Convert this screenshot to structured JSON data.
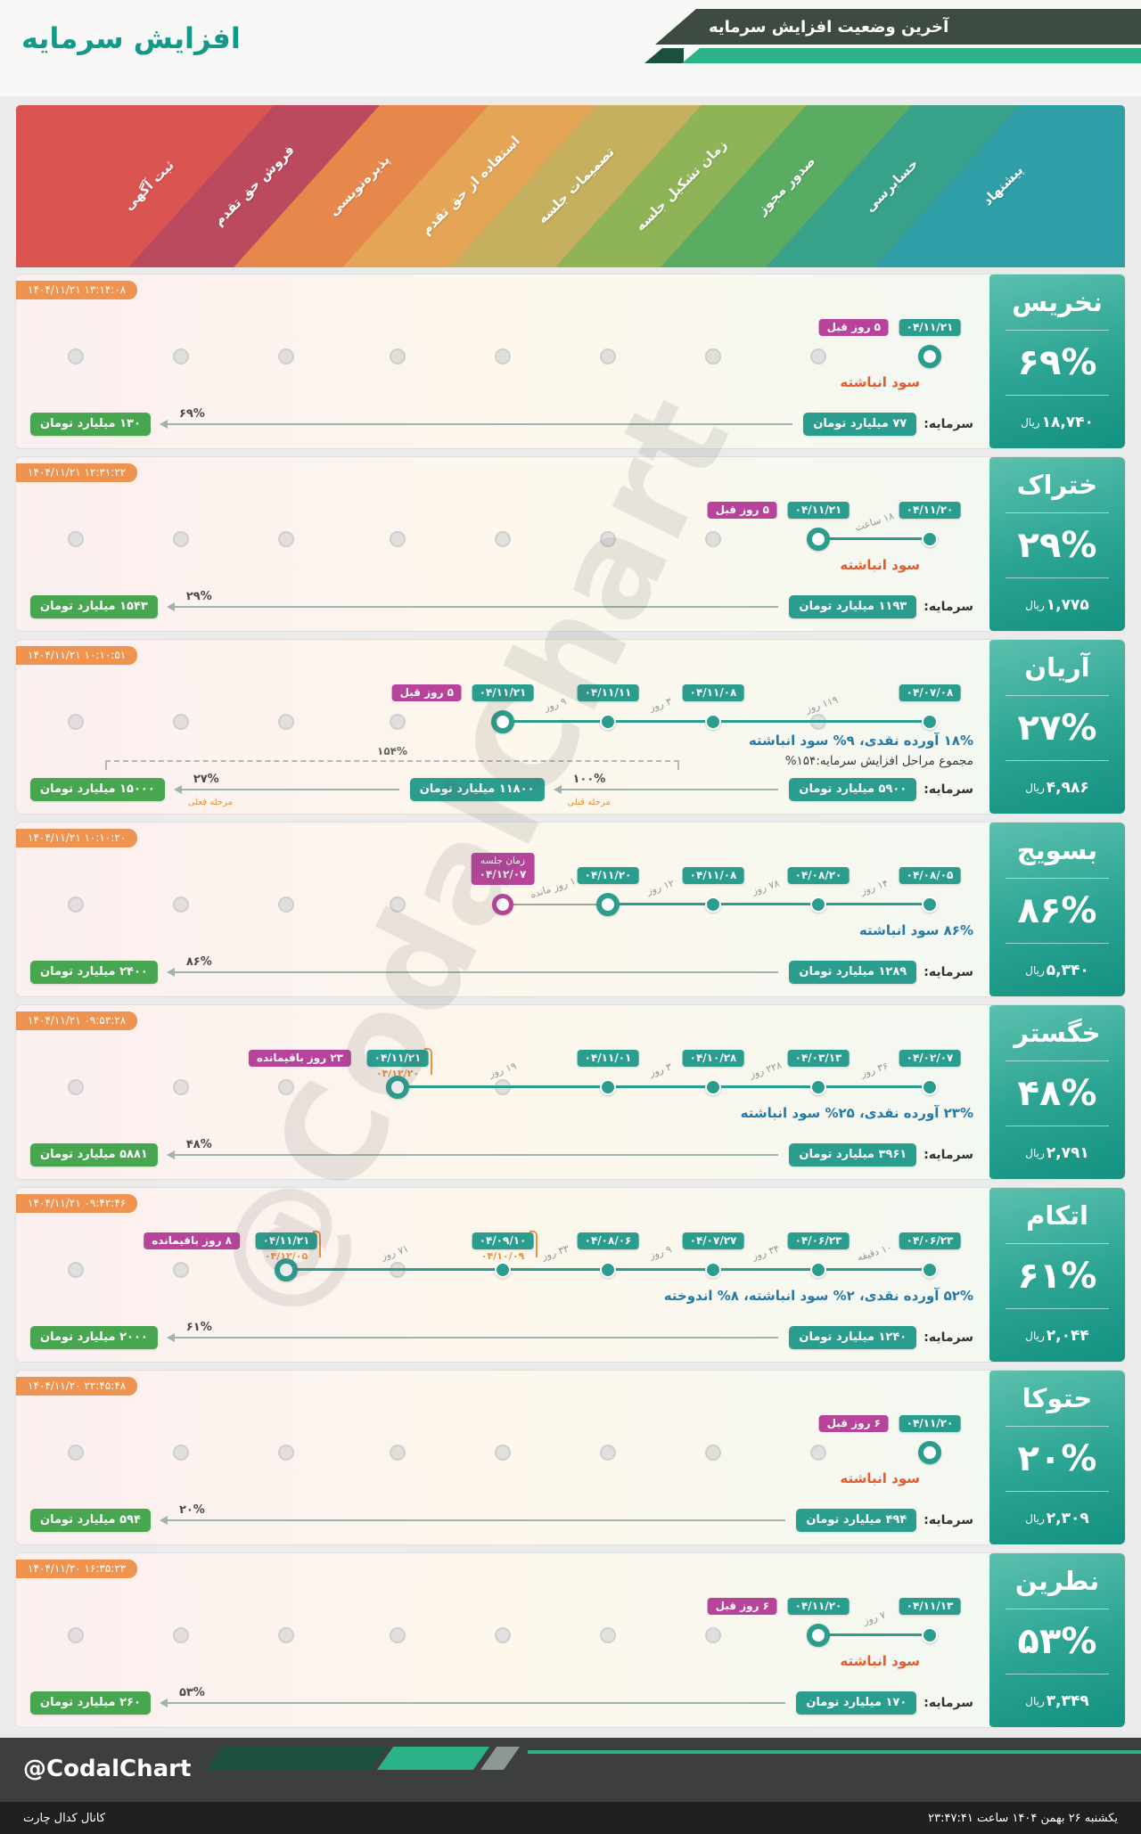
{
  "header": {
    "title": "افزایش سرمایه",
    "banner": "آخرین وضعیت افزایش سرمایه"
  },
  "watermark": "@CodalChart",
  "colors": {
    "teal": "#2a9d8f",
    "magenta": "#b8439a",
    "timestamp_orange": "#ef9350",
    "green_badge": "#47a64f",
    "panel_top": "#5cc0ae",
    "panel_bottom": "#149180"
  },
  "stages": [
    {
      "label": "پیشنهاد",
      "color": "#2f9ea6"
    },
    {
      "label": "حسابرسی",
      "color": "#37a289"
    },
    {
      "label": "صدور مجوز",
      "color": "#5aac63"
    },
    {
      "label": "زمان تشکیل جلسه",
      "color": "#8fb457"
    },
    {
      "label": "تصمیمات جلسه",
      "color": "#c4b05e"
    },
    {
      "label": "استفاده از حق تقدم",
      "color": "#e5a557"
    },
    {
      "label": "پذیره‌نویسی",
      "color": "#e6874b"
    },
    {
      "label": "فروش حق تقدم",
      "color": "#bb4a5e"
    },
    {
      "label": "ثبت آگهی",
      "color": "#da5452"
    }
  ],
  "rows": [
    {
      "symbol": "نخریس",
      "timestamp": "۱۴۰۴/۱۱/۲۱ ۱۳:۱۴:۰۸",
      "percent": "۶۹%",
      "price": "۱۸,۷۴۰",
      "price_unit": "ریال",
      "dots": [
        {
          "stage": 0,
          "date": "۰۴/۱۱/۲۱",
          "active": true,
          "ago": "۵ روز قبل"
        }
      ],
      "notes": [
        {
          "text": "سود انباشته",
          "style": "orange"
        }
      ],
      "capital": {
        "label": "سرمایه:",
        "items": [
          {
            "type": "badge",
            "color": "teal",
            "text": "۷۷ میلیارد تومان"
          },
          {
            "type": "arrow",
            "pct": "۶۹%"
          },
          {
            "type": "badge",
            "color": "green",
            "text": "۱۳۰ میلیارد تومان"
          }
        ]
      }
    },
    {
      "symbol": "ختراک",
      "timestamp": "۱۴۰۴/۱۱/۲۱ ۱۲:۳۱:۲۲",
      "percent": "۲۹%",
      "price": "۱,۷۷۵",
      "price_unit": "ریال",
      "dots": [
        {
          "stage": 0,
          "date": "۰۴/۱۱/۲۰",
          "dur": "۱۸ ساعت"
        },
        {
          "stage": 1,
          "date": "۰۴/۱۱/۲۱",
          "active": true,
          "ago": "۵ روز قبل"
        }
      ],
      "notes": [
        {
          "text": "سود انباشته",
          "style": "orange"
        }
      ],
      "capital": {
        "label": "سرمایه:",
        "items": [
          {
            "type": "badge",
            "color": "teal",
            "text": "۱۱۹۳ میلیارد تومان"
          },
          {
            "type": "arrow",
            "pct": "۲۹%"
          },
          {
            "type": "badge",
            "color": "green",
            "text": "۱۵۴۳ میلیارد تومان"
          }
        ]
      }
    },
    {
      "symbol": "آریان",
      "timestamp": "۱۴۰۴/۱۱/۲۱ ۱۰:۱۰:۵۱",
      "percent": "۲۷%",
      "price": "۴,۹۸۶",
      "price_unit": "ریال",
      "dots": [
        {
          "stage": 0,
          "date": "۰۴/۰۷/۰۸",
          "dur": "۱۱۹ روز"
        },
        {
          "stage": 2,
          "date": "۰۴/۱۱/۰۸",
          "dur": "۳ روز"
        },
        {
          "stage": 3,
          "date": "۰۴/۱۱/۱۱",
          "dur": "۹ روز"
        },
        {
          "stage": 4,
          "date": "۰۴/۱۱/۲۱",
          "active": true,
          "ago": "۵ روز قبل"
        }
      ],
      "notes": [
        {
          "text": "۱۸% آورده نقدی، ۹% سود انباشته",
          "style": "blue"
        },
        {
          "text": "مجموع مراحل افزایش سرمایه:۱۵۴%",
          "style": "dark"
        }
      ],
      "capital": {
        "label": "سرمایه:",
        "total": "۱۵۴%",
        "items": [
          {
            "type": "badge",
            "color": "teal",
            "text": "۵۹۰۰ میلیارد تومان"
          },
          {
            "type": "arrow",
            "pct": "۱۰۰%",
            "sub": "مرحله قبلی"
          },
          {
            "type": "badge",
            "color": "teal",
            "text": "۱۱۸۰۰ میلیارد تومان"
          },
          {
            "type": "arrow",
            "pct": "۲۷%",
            "sub": "مرحله فعلی"
          },
          {
            "type": "badge",
            "color": "green",
            "text": "۱۵۰۰۰ میلیارد تومان"
          }
        ]
      }
    },
    {
      "symbol": "بسویج",
      "timestamp": "۱۴۰۴/۱۱/۲۱ ۱۰:۱۰:۲۰",
      "percent": "۸۶%",
      "price": "۵,۳۴۰",
      "price_unit": "ریال",
      "dots": [
        {
          "stage": 0,
          "date": "۰۴/۰۸/۰۵",
          "dur": "۱۴ روز"
        },
        {
          "stage": 1,
          "date": "۰۴/۰۸/۲۰",
          "dur": "۷۸ روز"
        },
        {
          "stage": 2,
          "date": "۰۴/۱۱/۰۸",
          "dur": "۱۲ روز"
        },
        {
          "stage": 3,
          "date": "۰۴/۱۱/۲۰",
          "active": true,
          "dur": "۱۰ روز مانده"
        },
        {
          "stage": 4,
          "pending": true,
          "badge_title": "زمان جلسه",
          "date": "۰۴/۱۲/۰۷"
        }
      ],
      "notes": [
        {
          "text": "۸۶% سود انباشته",
          "style": "blue"
        }
      ],
      "capital": {
        "label": "سرمایه:",
        "items": [
          {
            "type": "badge",
            "color": "teal",
            "text": "۱۲۸۹ میلیارد تومان"
          },
          {
            "type": "arrow",
            "pct": "۸۶%"
          },
          {
            "type": "badge",
            "color": "green",
            "text": "۲۴۰۰ میلیارد تومان"
          }
        ]
      }
    },
    {
      "symbol": "خگستر",
      "timestamp": "۱۴۰۴/۱۱/۲۱ ۰۹:۵۳:۲۸",
      "percent": "۴۸%",
      "price": "۲,۷۹۱",
      "price_unit": "ریال",
      "dots": [
        {
          "stage": 0,
          "date": "۰۴/۰۲/۰۷",
          "dur": "۳۶ روز"
        },
        {
          "stage": 1,
          "date": "۰۴/۰۳/۱۳",
          "dur": "۲۲۸ روز"
        },
        {
          "stage": 2,
          "date": "۰۴/۱۰/۲۸",
          "dur": "۳ روز"
        },
        {
          "stage": 3,
          "date": "۰۴/۱۱/۰۱",
          "dur": "۱۹ روز"
        },
        {
          "stage": 5,
          "date": "۰۴/۱۱/۲۱",
          "date2": "۰۴/۱۲/۲۰",
          "active": true,
          "remaining": "۲۳ روز باقیمانده"
        }
      ],
      "notes": [
        {
          "text": "۲۳% آورده نقدی، ۲۵% سود انباشته",
          "style": "blue"
        }
      ],
      "capital": {
        "label": "سرمایه:",
        "items": [
          {
            "type": "badge",
            "color": "teal",
            "text": "۳۹۶۱ میلیارد تومان"
          },
          {
            "type": "arrow",
            "pct": "۴۸%"
          },
          {
            "type": "badge",
            "color": "green",
            "text": "۵۸۸۱ میلیارد تومان"
          }
        ]
      }
    },
    {
      "symbol": "اتکام",
      "timestamp": "۱۴۰۴/۱۱/۲۱ ۰۹:۴۲:۴۶",
      "percent": "۶۱%",
      "price": "۲,۰۴۴",
      "price_unit": "ریال",
      "dots": [
        {
          "stage": 0,
          "date": "۰۴/۰۶/۲۳",
          "dur": "۱۰ دقیقه"
        },
        {
          "stage": 1,
          "date": "۰۴/۰۶/۲۳",
          "dur": "۳۴ روز"
        },
        {
          "stage": 2,
          "date": "۰۴/۰۷/۲۷",
          "dur": "۹ روز"
        },
        {
          "stage": 3,
          "date": "۰۴/۰۸/۰۶",
          "dur": "۳۳ روز"
        },
        {
          "stage": 4,
          "date": "۰۴/۰۹/۱۰",
          "date2": "۰۴/۱۰/۰۹",
          "dur": "۷۱ روز"
        },
        {
          "stage": 6,
          "date": "۰۴/۱۱/۲۱",
          "date2": "۰۴/۱۲/۰۵",
          "active": true,
          "remaining": "۸ روز باقیمانده"
        }
      ],
      "notes": [
        {
          "text": "۵۲% آورده نقدی، ۲% سود انباشته، ۸% اندوخته",
          "style": "blue"
        }
      ],
      "capital": {
        "label": "سرمایه:",
        "items": [
          {
            "type": "badge",
            "color": "teal",
            "text": "۱۲۴۰ میلیارد تومان"
          },
          {
            "type": "arrow",
            "pct": "۶۱%"
          },
          {
            "type": "badge",
            "color": "green",
            "text": "۲۰۰۰ میلیارد تومان"
          }
        ]
      }
    },
    {
      "symbol": "حتوکا",
      "timestamp": "۱۴۰۴/۱۱/۲۰ ۲۲:۴۵:۴۸",
      "percent": "۲۰%",
      "price": "۲,۳۰۹",
      "price_unit": "ریال",
      "dots": [
        {
          "stage": 0,
          "date": "۰۴/۱۱/۲۰",
          "active": true,
          "ago": "۶ روز قبل"
        }
      ],
      "notes": [
        {
          "text": "سود انباشته",
          "style": "orange"
        }
      ],
      "capital": {
        "label": "سرمایه:",
        "items": [
          {
            "type": "badge",
            "color": "teal",
            "text": "۴۹۴ میلیارد تومان"
          },
          {
            "type": "arrow",
            "pct": "۲۰%"
          },
          {
            "type": "badge",
            "color": "green",
            "text": "۵۹۴ میلیارد تومان"
          }
        ]
      }
    },
    {
      "symbol": "نطرین",
      "timestamp": "۱۴۰۴/۱۱/۲۰ ۱۶:۳۵:۲۳",
      "percent": "۵۳%",
      "price": "۳,۳۴۹",
      "price_unit": "ریال",
      "dots": [
        {
          "stage": 0,
          "date": "۰۴/۱۱/۱۳",
          "dur": "۷ روز"
        },
        {
          "stage": 1,
          "date": "۰۴/۱۱/۲۰",
          "active": true,
          "ago": "۶ روز قبل"
        }
      ],
      "notes": [
        {
          "text": "سود انباشته",
          "style": "orange"
        }
      ],
      "capital": {
        "label": "سرمایه:",
        "items": [
          {
            "type": "badge",
            "color": "teal",
            "text": "۱۷۰ میلیارد تومان"
          },
          {
            "type": "arrow",
            "pct": "۵۳%"
          },
          {
            "type": "badge",
            "color": "green",
            "text": "۲۶۰ میلیارد تومان"
          }
        ]
      }
    }
  ],
  "footer": {
    "brand": "@CodalChart",
    "channel": "کانال کدال چارت",
    "datetime": "یکشنبه ۲۶ بهمن ۱۴۰۴ ساعت ۲۳:۴۷:۴۱"
  },
  "chart_data": {
    "type": "table",
    "title": "آخرین وضعیت افزایش سرمایه",
    "columns": [
      "symbol",
      "increase_percent",
      "price_rial",
      "capital_old_billion_toman",
      "capital_new_billion_toman"
    ],
    "rows": [
      [
        "نخریس",
        "۶۹%",
        "۱۸,۷۴۰",
        "۷۷",
        "۱۳۰"
      ],
      [
        "ختراک",
        "۲۹%",
        "۱,۷۷۵",
        "۱۱۹۳",
        "۱۵۴۳"
      ],
      [
        "آریان",
        "۲۷%",
        "۴,۹۸۶",
        "۵۹۰۰",
        "۱۵۰۰۰"
      ],
      [
        "بسویج",
        "۸۶%",
        "۵,۳۴۰",
        "۱۲۸۹",
        "۲۴۰۰"
      ],
      [
        "خگستر",
        "۴۸%",
        "۲,۷۹۱",
        "۳۹۶۱",
        "۵۸۸۱"
      ],
      [
        "اتکام",
        "۶۱%",
        "۲,۰۴۴",
        "۱۲۴۰",
        "۲۰۰۰"
      ],
      [
        "حتوکا",
        "۲۰%",
        "۲,۳۰۹",
        "۴۹۴",
        "۵۹۴"
      ],
      [
        "نطرین",
        "۵۳%",
        "۳,۳۴۹",
        "۱۷۰",
        "۲۶۰"
      ]
    ]
  }
}
